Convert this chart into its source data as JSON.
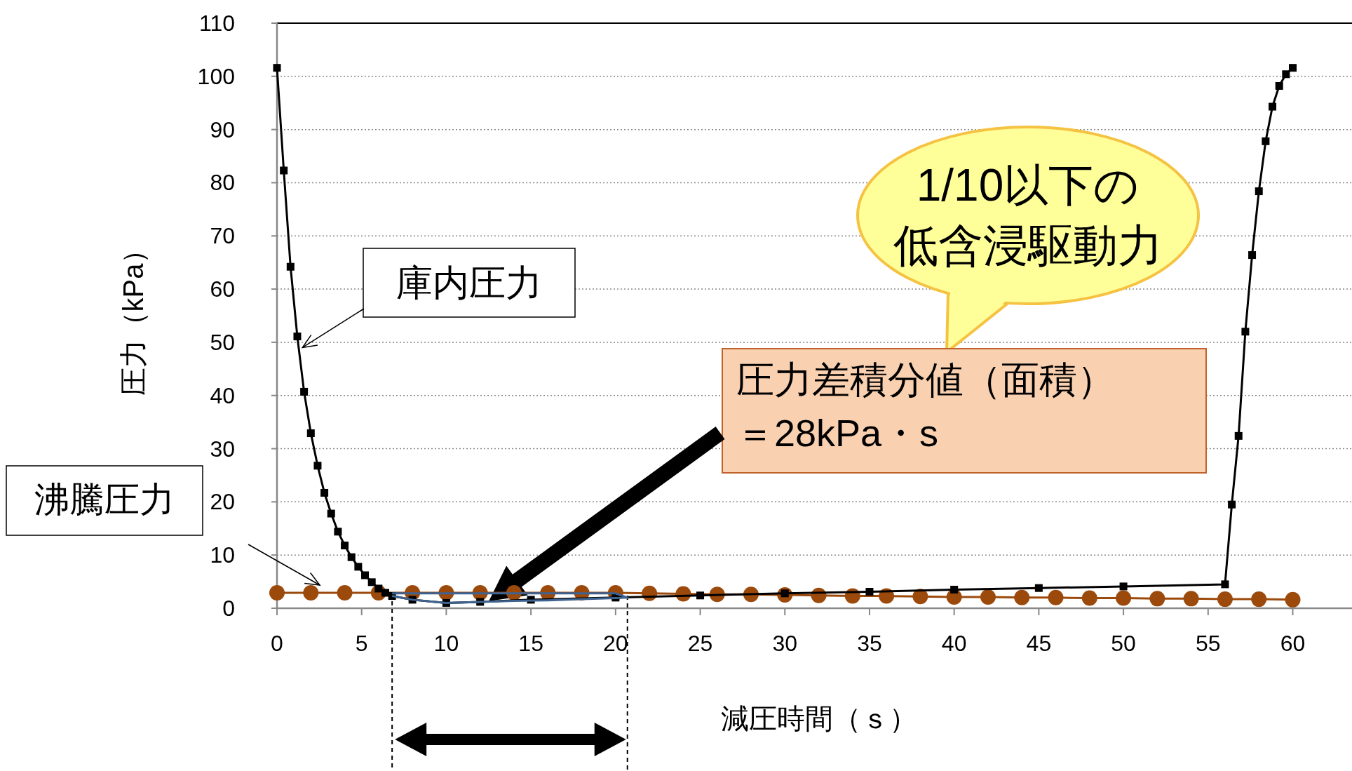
{
  "chart_data": {
    "type": "line",
    "xlabel": "減圧時間（ｓ）",
    "ylabel": "圧力（kPa）",
    "xlim": [
      0,
      63.5
    ],
    "xticks": [
      0,
      5,
      10,
      15,
      20,
      25,
      30,
      35,
      40,
      45,
      50,
      55,
      60
    ],
    "ylim": [
      0,
      110
    ],
    "yticks": [
      0,
      10,
      20,
      30,
      40,
      50,
      60,
      70,
      80,
      90,
      100,
      110
    ],
    "grid": "y",
    "series": [
      {
        "color": "#3f6390",
        "x": [
          6.8,
          8,
          10,
          12,
          14,
          16,
          18,
          20,
          20.7,
          20,
          18,
          16,
          14,
          12,
          10,
          8,
          6.8
        ],
        "values": [
          2.8,
          2.8,
          2.8,
          2.8,
          2.8,
          2.8,
          2.8,
          2.8,
          2.0,
          1.9,
          1.7,
          1.5,
          1.4,
          1.2,
          1.0,
          1.6,
          2.3
        ]
      },
      {
        "color": "#9c4a0c",
        "marker": "circle",
        "x": [
          0,
          2,
          4,
          6,
          8,
          10,
          12,
          14,
          16,
          18,
          20,
          22,
          24,
          26,
          28,
          30,
          32,
          34,
          36,
          38,
          40,
          42,
          44,
          46,
          48,
          50,
          52,
          54,
          56,
          58,
          60
        ],
        "values": [
          2.9,
          2.9,
          2.9,
          2.9,
          2.9,
          2.9,
          2.9,
          2.9,
          2.9,
          2.9,
          2.9,
          2.8,
          2.7,
          2.6,
          2.6,
          2.5,
          2.4,
          2.3,
          2.3,
          2.2,
          2.1,
          2.1,
          2.0,
          2.0,
          1.9,
          1.9,
          1.8,
          1.8,
          1.7,
          1.7,
          1.6
        ]
      },
      {
        "color": "#000000",
        "marker": "square",
        "x": [
          0,
          0.4,
          0.8,
          1.2,
          1.6,
          2.0,
          2.4,
          2.8,
          3.2,
          3.6,
          4.0,
          4.4,
          4.8,
          5.2,
          5.6,
          6.0,
          6.4,
          6.8,
          8,
          10,
          12,
          15,
          20,
          25,
          30,
          35,
          40,
          45,
          50,
          56,
          56.4,
          56.8,
          57.2,
          57.6,
          58.0,
          58.4,
          58.8,
          59.2,
          59.6,
          60
        ],
        "values": [
          101.6,
          82.3,
          64.2,
          51.1,
          40.7,
          32.9,
          26.8,
          21.7,
          17.8,
          14.4,
          11.8,
          9.6,
          7.8,
          6.2,
          4.9,
          3.7,
          2.9,
          2.3,
          1.6,
          1.0,
          1.2,
          1.6,
          2.0,
          2.4,
          2.8,
          3.1,
          3.5,
          3.8,
          4.1,
          4.5,
          19.5,
          32.4,
          52.0,
          66.4,
          78.4,
          87.8,
          94.3,
          98.2,
          100.4,
          101.6
        ]
      }
    ],
    "annotations": [
      {
        "text": "庫内圧力",
        "x": 1.5,
        "y": 49
      },
      "沸騰圧力",
      "1/10以下の",
      "低含浸駆動力",
      "圧力差積分値（面積）",
      "＝28kPa・s"
    ]
  }
}
